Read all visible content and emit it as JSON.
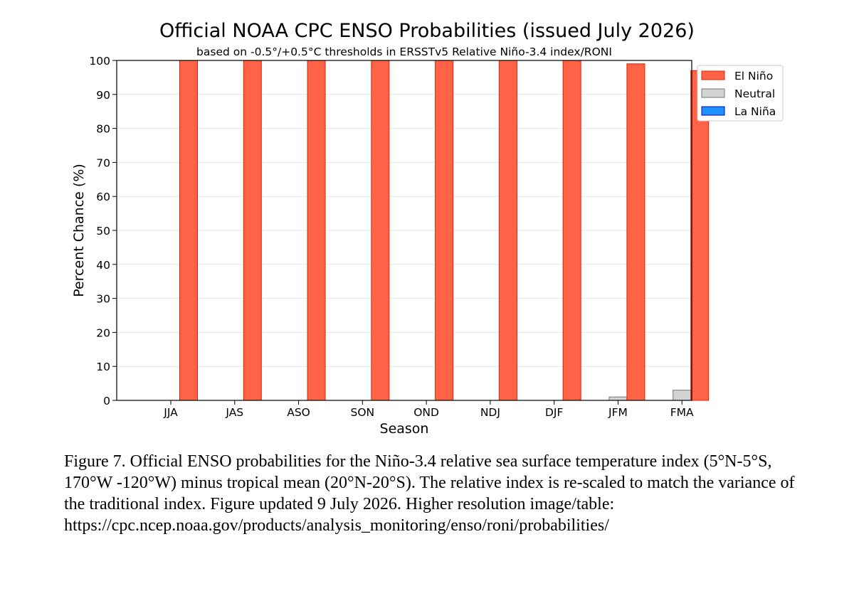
{
  "chart_data": {
    "type": "bar",
    "title": "Official NOAA CPC ENSO Probabilities (issued July 2026)",
    "subtitle": "based on -0.5°/+0.5°C thresholds in ERSSTv5 Relative Niño-3.4 index/RONI",
    "xlabel": "Season",
    "ylabel": "Percent Chance (%)",
    "ylim": [
      0,
      100
    ],
    "yticks": [
      0,
      10,
      20,
      30,
      40,
      50,
      60,
      70,
      80,
      90,
      100
    ],
    "grid": true,
    "legend_position": "outside-top-right",
    "categories": [
      "JJA",
      "JAS",
      "ASO",
      "SON",
      "OND",
      "NDJ",
      "DJF",
      "JFM",
      "FMA"
    ],
    "series": [
      {
        "name": "La Niña",
        "color": "#1e90ff",
        "edge": "#0000cc",
        "values": [
          0,
          0,
          0,
          0,
          0,
          0,
          0,
          0,
          0
        ]
      },
      {
        "name": "Neutral",
        "color": "#d3d3d3",
        "edge": "#777777",
        "values": [
          0,
          0,
          0,
          0,
          0,
          0,
          0,
          1,
          3
        ]
      },
      {
        "name": "El Niño",
        "color": "#ff6347",
        "edge": "#e02000",
        "values": [
          100,
          100,
          100,
          100,
          100,
          100,
          100,
          99,
          97
        ]
      }
    ],
    "legend_order": [
      "El Niño",
      "Neutral",
      "La Niña"
    ]
  },
  "caption": "Figure 7. Official ENSO probabilities for the Niño-3.4 relative sea surface temperature index (5°N-5°S, 170°W -120°W) minus tropical mean (20°N-20°S). The relative index is re-scaled to match the variance of the traditional index. Figure updated 9 July 2026. Higher resolution image/table: https://cpc.ncep.noaa.gov/products/analysis_monitoring/enso/roni/probabilities/"
}
